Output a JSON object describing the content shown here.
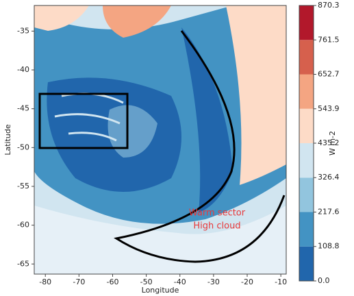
{
  "chart_data": {
    "type": "heatmap",
    "x_label": "Longitude",
    "y_label": "Latitude",
    "xlim": [
      -83.3,
      -8.4
    ],
    "ylim": [
      -66.3,
      -31.7
    ],
    "xticks": [
      -80,
      -70,
      -60,
      -50,
      -40,
      -30,
      -20,
      -10
    ],
    "yticks": [
      -35,
      -40,
      -45,
      -50,
      -55,
      -60,
      -65
    ],
    "annotation": [
      "Warm sector",
      "High cloud"
    ],
    "colorbar": {
      "label": "W m-2",
      "ticks": [
        {
          "value": 0,
          "label": "0.0"
        },
        108.8,
        217.6,
        326.4,
        435.2,
        543.9,
        652.7,
        761.5,
        870.3
      ],
      "colors": [
        "#2166ac",
        "#4393c3",
        "#92c5de",
        "#d1e5f0",
        "#fddbc7",
        "#f4a582",
        "#d6604d",
        "#b2182b"
      ]
    }
  }
}
